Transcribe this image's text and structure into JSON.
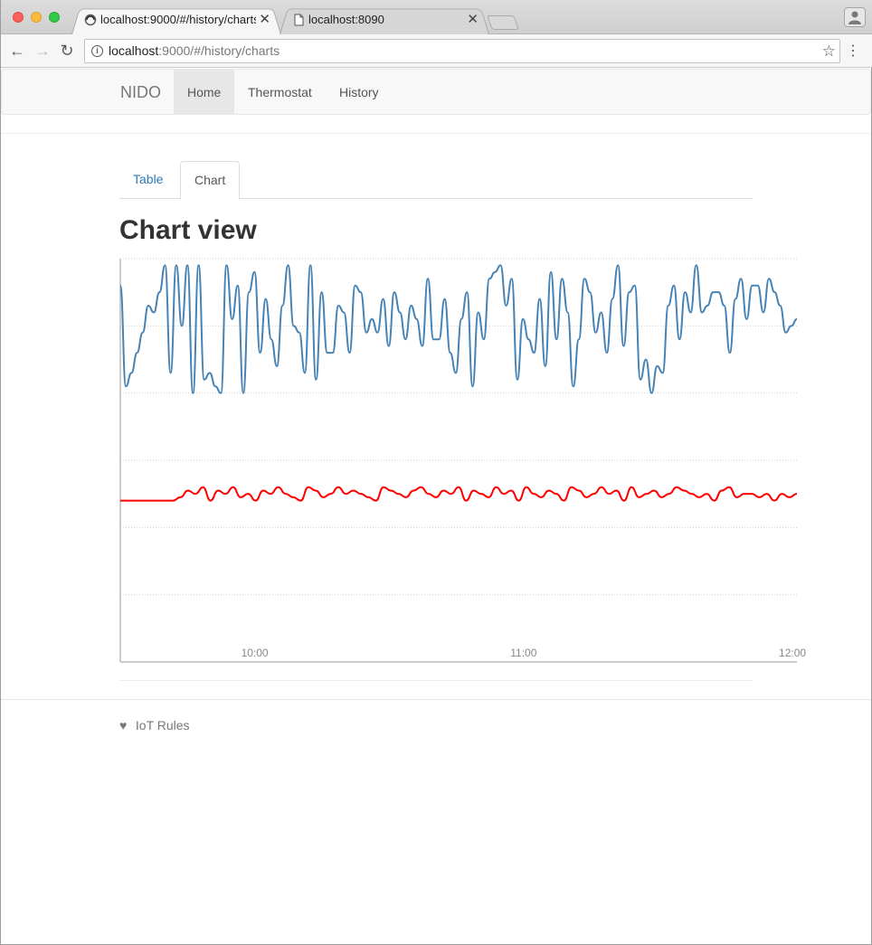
{
  "browser": {
    "tabs": [
      {
        "title": "localhost:9000/#/history/charts",
        "icon": "loading-icon",
        "active": true
      },
      {
        "title": "localhost:8090",
        "icon": "page-icon",
        "active": false
      }
    ],
    "url_host": "localhost",
    "url_path": ":9000/#/history/charts"
  },
  "navbar": {
    "brand": "NIDO",
    "links": [
      {
        "label": "Home",
        "active": true
      },
      {
        "label": "Thermostat",
        "active": false
      },
      {
        "label": "History",
        "active": false
      }
    ]
  },
  "page_tabs": [
    {
      "label": "Table",
      "active": false
    },
    {
      "label": "Chart",
      "active": true
    }
  ],
  "heading": "Chart view",
  "footer": {
    "icon": "heart-icon",
    "text": "IoT Rules"
  },
  "chart_data": {
    "type": "line",
    "grid": true,
    "title": "",
    "xlabel": "",
    "ylabel": "",
    "x_ticks": [
      "10:00",
      "11:00",
      "12:00"
    ],
    "x_range": [
      "09:30",
      "12:01"
    ],
    "y_range": [
      0,
      6
    ],
    "series": [
      {
        "color": "#4682b4",
        "values": [
          5.6,
          4.1,
          4.3,
          4.6,
          4.9,
          5.3,
          5.2,
          5.5,
          5.9,
          4.3,
          5.9,
          5.0,
          5.9,
          4.0,
          5.9,
          4.2,
          4.3,
          4.1,
          4.0,
          5.9,
          5.1,
          5.6,
          4.0,
          5.5,
          5.8,
          4.6,
          5.4,
          4.8,
          4.4,
          5.3,
          5.9,
          5.0,
          4.9,
          4.3,
          5.9,
          4.2,
          5.5,
          4.6,
          4.6,
          5.3,
          5.2,
          4.6,
          5.6,
          5.5,
          4.9,
          5.1,
          4.9,
          5.4,
          4.7,
          5.5,
          5.2,
          4.8,
          5.3,
          5.1,
          4.7,
          5.7,
          4.8,
          4.8,
          5.4,
          4.6,
          4.3,
          5.1,
          5.5,
          4.1,
          5.2,
          4.8,
          5.7,
          5.8,
          5.9,
          5.3,
          5.7,
          4.2,
          5.1,
          4.8,
          4.6,
          5.4,
          4.4,
          5.8,
          4.8,
          5.7,
          5.2,
          4.1,
          4.8,
          5.7,
          5.5,
          4.9,
          5.2,
          4.6,
          5.4,
          5.9,
          4.7,
          5.5,
          5.6,
          4.2,
          4.5,
          4.0,
          4.4,
          4.3,
          5.3,
          5.6,
          4.8,
          5.5,
          5.2,
          5.9,
          5.2,
          5.3,
          5.5,
          5.5,
          5.3,
          4.6,
          5.4,
          5.7,
          5.1,
          5.6,
          5.6,
          5.2,
          5.7,
          5.5,
          5.3,
          4.9,
          5.0,
          5.1
        ]
      },
      {
        "color": "#ff0000",
        "values": [
          2.4,
          2.4,
          2.4,
          2.4,
          2.4,
          2.4,
          2.4,
          2.4,
          2.45,
          2.55,
          2.5,
          2.6,
          2.4,
          2.55,
          2.5,
          2.6,
          2.45,
          2.5,
          2.4,
          2.55,
          2.5,
          2.6,
          2.5,
          2.45,
          2.4,
          2.6,
          2.55,
          2.45,
          2.5,
          2.6,
          2.5,
          2.55,
          2.5,
          2.45,
          2.4,
          2.6,
          2.55,
          2.5,
          2.45,
          2.55,
          2.6,
          2.5,
          2.45,
          2.55,
          2.5,
          2.6,
          2.4,
          2.55,
          2.5,
          2.45,
          2.6,
          2.5,
          2.55,
          2.4,
          2.6,
          2.5,
          2.45,
          2.55,
          2.5,
          2.4,
          2.6,
          2.55,
          2.45,
          2.5,
          2.6,
          2.5,
          2.55,
          2.4,
          2.6,
          2.45,
          2.5,
          2.55,
          2.45,
          2.5,
          2.6,
          2.55,
          2.5,
          2.45,
          2.5,
          2.4,
          2.55,
          2.6,
          2.45,
          2.5,
          2.5,
          2.45,
          2.5,
          2.4,
          2.5,
          2.45,
          2.5
        ]
      }
    ]
  }
}
